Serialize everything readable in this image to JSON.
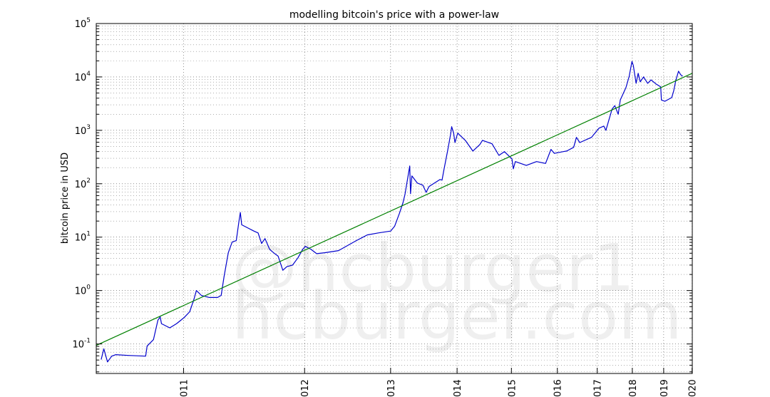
{
  "chart_data": {
    "type": "line",
    "title": "modelling bitcoin's price with a power-law",
    "xlabel": "",
    "ylabel": "bitcoin price in USD",
    "x_scale": "log",
    "y_scale": "log",
    "x_units": "days since genesis block",
    "xlim": [
      543,
      4018
    ],
    "ylim": [
      0.028,
      100000
    ],
    "grid": true,
    "x_ticks": [
      {
        "days": 728,
        "label": "011"
      },
      {
        "days": 1093,
        "label": "012"
      },
      {
        "days": 1459,
        "label": "013"
      },
      {
        "days": 1824,
        "label": "014"
      },
      {
        "days": 2189,
        "label": "015"
      },
      {
        "days": 2554,
        "label": "016"
      },
      {
        "days": 2920,
        "label": "017"
      },
      {
        "days": 3285,
        "label": "018"
      },
      {
        "days": 3650,
        "label": "019"
      },
      {
        "days": 4015,
        "label": "020"
      }
    ],
    "y_ticks": [
      {
        "value": 0.1,
        "base": "10",
        "exp": "-1"
      },
      {
        "value": 1,
        "base": "10",
        "exp": "0"
      },
      {
        "value": 10,
        "base": "10",
        "exp": "1"
      },
      {
        "value": 100,
        "base": "10",
        "exp": "2"
      },
      {
        "value": 1000,
        "base": "10",
        "exp": "3"
      },
      {
        "value": 10000,
        "base": "10",
        "exp": "4"
      },
      {
        "value": 100000,
        "base": "10",
        "exp": "5"
      }
    ],
    "series": [
      {
        "name": "bitcoin price",
        "color": "#0000cc",
        "points": [
          [
            552,
            0.051
          ],
          [
            557,
            0.081
          ],
          [
            564,
            0.046
          ],
          [
            572,
            0.059
          ],
          [
            580,
            0.063
          ],
          [
            605,
            0.061
          ],
          [
            641,
            0.059
          ],
          [
            644,
            0.091
          ],
          [
            658,
            0.12
          ],
          [
            668,
            0.28
          ],
          [
            673,
            0.32
          ],
          [
            676,
            0.24
          ],
          [
            695,
            0.2
          ],
          [
            711,
            0.24
          ],
          [
            729,
            0.31
          ],
          [
            743,
            0.4
          ],
          [
            754,
            0.69
          ],
          [
            760,
            1.0
          ],
          [
            773,
            0.81
          ],
          [
            794,
            0.74
          ],
          [
            816,
            0.74
          ],
          [
            826,
            0.81
          ],
          [
            834,
            1.8
          ],
          [
            846,
            5.1
          ],
          [
            857,
            8.1
          ],
          [
            869,
            8.6
          ],
          [
            877,
            20
          ],
          [
            881,
            29
          ],
          [
            885,
            17
          ],
          [
            902,
            15
          ],
          [
            922,
            13
          ],
          [
            935,
            12
          ],
          [
            946,
            7.6
          ],
          [
            957,
            9.4
          ],
          [
            972,
            5.9
          ],
          [
            989,
            4.9
          ],
          [
            1000,
            4.4
          ],
          [
            1016,
            2.4
          ],
          [
            1030,
            2.8
          ],
          [
            1050,
            3.0
          ],
          [
            1069,
            4.1
          ],
          [
            1086,
            5.9
          ],
          [
            1096,
            6.7
          ],
          [
            1117,
            5.9
          ],
          [
            1138,
            4.9
          ],
          [
            1169,
            5.1
          ],
          [
            1225,
            5.6
          ],
          [
            1300,
            8.6
          ],
          [
            1349,
            11
          ],
          [
            1400,
            12
          ],
          [
            1459,
            13
          ],
          [
            1479,
            16
          ],
          [
            1503,
            28
          ],
          [
            1521,
            44
          ],
          [
            1531,
            63
          ],
          [
            1556,
            215
          ],
          [
            1560,
            65
          ],
          [
            1567,
            140
          ],
          [
            1596,
            103
          ],
          [
            1626,
            94
          ],
          [
            1644,
            69
          ],
          [
            1660,
            89
          ],
          [
            1722,
            120
          ],
          [
            1734,
            117
          ],
          [
            1746,
            190
          ],
          [
            1766,
            400
          ],
          [
            1786,
            885
          ],
          [
            1791,
            1170
          ],
          [
            1803,
            885
          ],
          [
            1811,
            590
          ],
          [
            1828,
            885
          ],
          [
            1875,
            650
          ],
          [
            1923,
            410
          ],
          [
            1968,
            540
          ],
          [
            1986,
            650
          ],
          [
            2051,
            560
          ],
          [
            2099,
            340
          ],
          [
            2138,
            400
          ],
          [
            2193,
            290
          ],
          [
            2203,
            190
          ],
          [
            2218,
            260
          ],
          [
            2301,
            220
          ],
          [
            2382,
            260
          ],
          [
            2455,
            240
          ],
          [
            2500,
            440
          ],
          [
            2529,
            370
          ],
          [
            2606,
            400
          ],
          [
            2636,
            410
          ],
          [
            2698,
            480
          ],
          [
            2723,
            740
          ],
          [
            2754,
            590
          ],
          [
            2864,
            740
          ],
          [
            2938,
            1100
          ],
          [
            2985,
            1200
          ],
          [
            3006,
            1000
          ],
          [
            3069,
            2500
          ],
          [
            3097,
            2900
          ],
          [
            3133,
            2000
          ],
          [
            3155,
            3700
          ],
          [
            3215,
            6300
          ],
          [
            3251,
            10300
          ],
          [
            3281,
            19500
          ],
          [
            3296,
            16300
          ],
          [
            3327,
            7600
          ],
          [
            3350,
            11700
          ],
          [
            3374,
            8100
          ],
          [
            3412,
            10000
          ],
          [
            3459,
            7600
          ],
          [
            3499,
            8800
          ],
          [
            3556,
            7400
          ],
          [
            3614,
            6500
          ],
          [
            3622,
            3700
          ],
          [
            3664,
            3500
          ],
          [
            3750,
            4100
          ],
          [
            3776,
            5600
          ],
          [
            3802,
            8600
          ],
          [
            3837,
            12800
          ],
          [
            3864,
            11000
          ],
          [
            3890,
            10300
          ]
        ]
      },
      {
        "name": "power-law fit",
        "color": "#008000",
        "points": [
          [
            543,
            0.094
          ],
          [
            4018,
            11700
          ]
        ]
      }
    ],
    "watermark": [
      "@hcburger1",
      "hcburger.com"
    ]
  }
}
